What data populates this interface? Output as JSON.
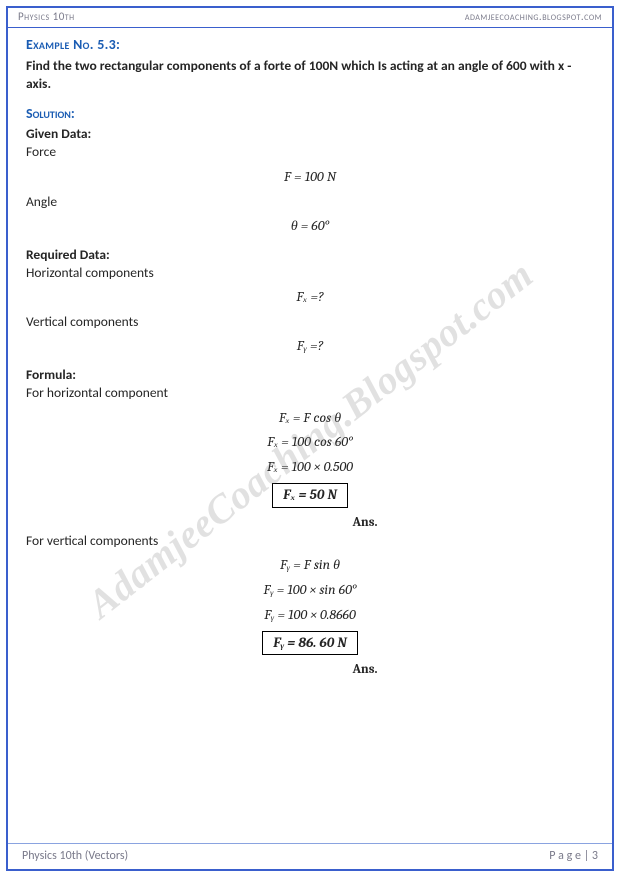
{
  "header": {
    "left": "Physics 10th",
    "right": "adamjeecoaching.blogspot.com"
  },
  "watermark": "AdamjeeCoaching.Blogspot.com",
  "example": {
    "heading": "Example No. 5.3:",
    "problem": "Find the two rectangular components of a forte of 100N which Is acting at an angle of 600 with x - axis."
  },
  "solution": {
    "heading": "Solution:",
    "given_label": "Given Data:",
    "force_label": "Force",
    "force_eq": "F = 100 N",
    "angle_label": "Angle",
    "angle_eq": "θ = 60°",
    "required_label": "Required Data:",
    "hcomp_label": "Horizontal components",
    "hcomp_eq": "Fₓ =?",
    "vcomp_label": "Vertical components",
    "vcomp_eq": "Fᵧ =?",
    "formula_label": "Formula:",
    "h_formula_label": "For horizontal component",
    "h_eq1": "Fₓ = F cos θ",
    "h_eq2": "Fₓ = 100 cos 60°",
    "h_eq3": "Fₓ = 100 × 0.500",
    "h_result": "Fₓ = 50 N",
    "v_formula_label": "For vertical components",
    "v_eq1": "Fᵧ = F sin θ",
    "v_eq2": "Fᵧ = 100 × sin 60°",
    "v_eq3": "Fᵧ = 100 × 0.8660",
    "v_result": "Fᵧ = 86. 60 N",
    "ans_label": "Ans."
  },
  "footer": {
    "left": "Physics 10th (Vectors)",
    "right_prefix": "P a g e  | ",
    "page_number": "3"
  },
  "colors": {
    "frame": "#3a5fcd",
    "heading": "#1a5cb3",
    "muted": "#7a7a8a",
    "text": "#252525"
  }
}
